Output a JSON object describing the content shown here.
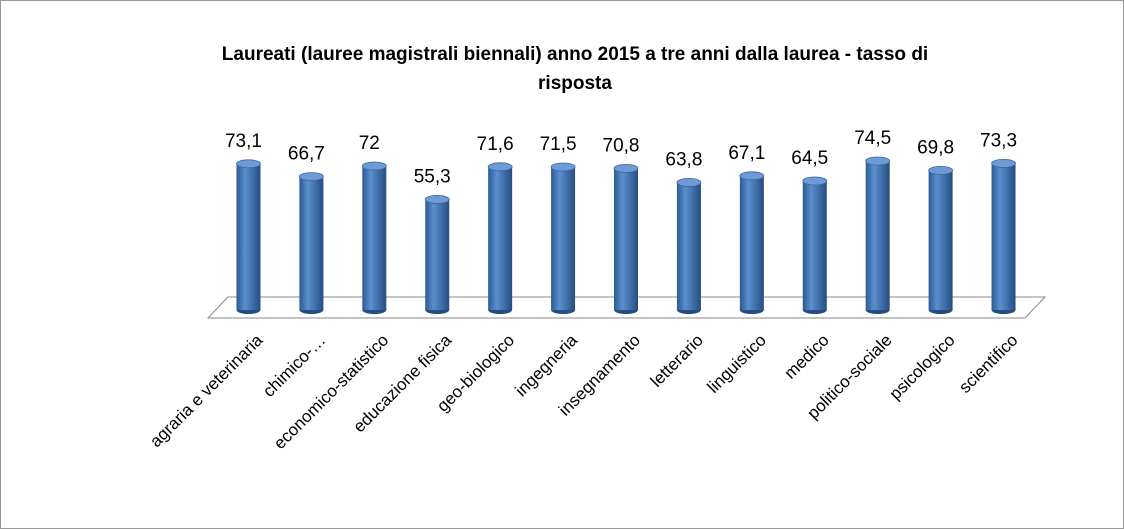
{
  "chart_data": {
    "type": "bar3d",
    "title": [
      "Laureati (lauree magistrali biennali) anno 2015 a tre anni dalla laurea - tasso di",
      "risposta"
    ],
    "categories": [
      "agraria e veterinaria",
      "chimico-…",
      "economico-statistico",
      "educazione fisica",
      "geo-biologico",
      "ingegneria",
      "insegnamento",
      "letterario",
      "linguistico",
      "medico",
      "politico-sociale",
      "psicologico",
      "scientifico"
    ],
    "values": [
      73.1,
      66.7,
      72,
      55.3,
      71.6,
      71.5,
      70.8,
      63.8,
      67.1,
      64.5,
      74.5,
      69.8,
      73.3
    ],
    "value_labels": [
      "73,1",
      "66,7",
      "72",
      "55,3",
      "71,6",
      "71,5",
      "70,8",
      "63,8",
      "67,1",
      "64,5",
      "74,5",
      "69,8",
      "73,3"
    ],
    "color": "#4f81bd",
    "ylim": [
      0,
      80
    ]
  }
}
